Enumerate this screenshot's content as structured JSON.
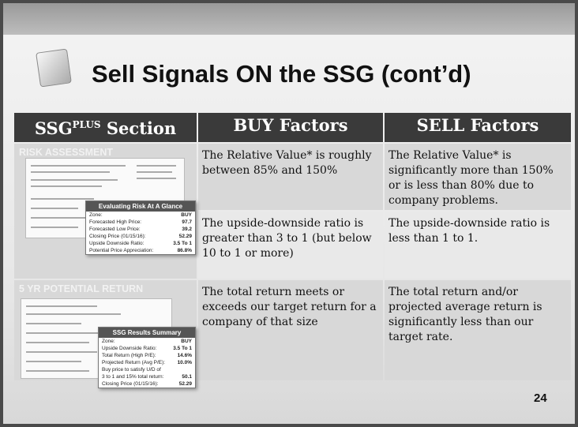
{
  "title": "Sell Signals ON the SSG (cont’d)",
  "table": {
    "header": {
      "section": "SSG",
      "section_sup": "PLUS",
      "section_rest": "Section",
      "buy": "BUY Factors",
      "sell": "SELL Factors"
    },
    "rows": [
      {
        "section": "RISK ASSESSMENT",
        "factors": [
          {
            "buy": "The Relative Value* is roughly between 85% and 150%",
            "sell": "The Relative Value* is significantly more than 150% or is less than 80% due to company problems."
          },
          {
            "buy": "The upside-downside ratio is greater than 3 to 1 (but below 10 to 1 or more)",
            "sell": "The upside-downside ratio is less than 1 to 1."
          }
        ]
      },
      {
        "section": "5 YR POTENTIAL RETURN",
        "factors": [
          {
            "buy": "The total return meets or exceeds our target return for a company of that size",
            "sell": "The total return and/or projected average return is significantly less than our target rate."
          }
        ]
      }
    ]
  },
  "insets": [
    {
      "title": "Evaluating Risk At A Glance",
      "rows": [
        [
          "Zone:",
          "BUY"
        ],
        [
          "Forecasted High Price:",
          "97.7"
        ],
        [
          "Forecasted Low Price:",
          "39.2"
        ],
        [
          "Closing Price (01/15/16):",
          "52.29"
        ],
        [
          "Upside Downside Ratio:",
          "3.5 To 1"
        ],
        [
          "Potential Price Appreciation:",
          "86.8%"
        ]
      ]
    },
    {
      "title": "SSG Results Summary",
      "rows": [
        [
          "Zone:",
          "BUY"
        ],
        [
          "Upside Downside Ratio:",
          "3.5 To 1"
        ],
        [
          "Total Return (High P/E):",
          "14.6%"
        ],
        [
          "Projected Return (Avg P/E):",
          "10.0%"
        ],
        [
          "Buy price to satisfy U/D of",
          ""
        ],
        [
          "3 to 1 and 15% total return:",
          "50.1"
        ],
        [
          "Closing Price (01/15/16):",
          "52.29"
        ]
      ]
    }
  ],
  "page_number": "24"
}
